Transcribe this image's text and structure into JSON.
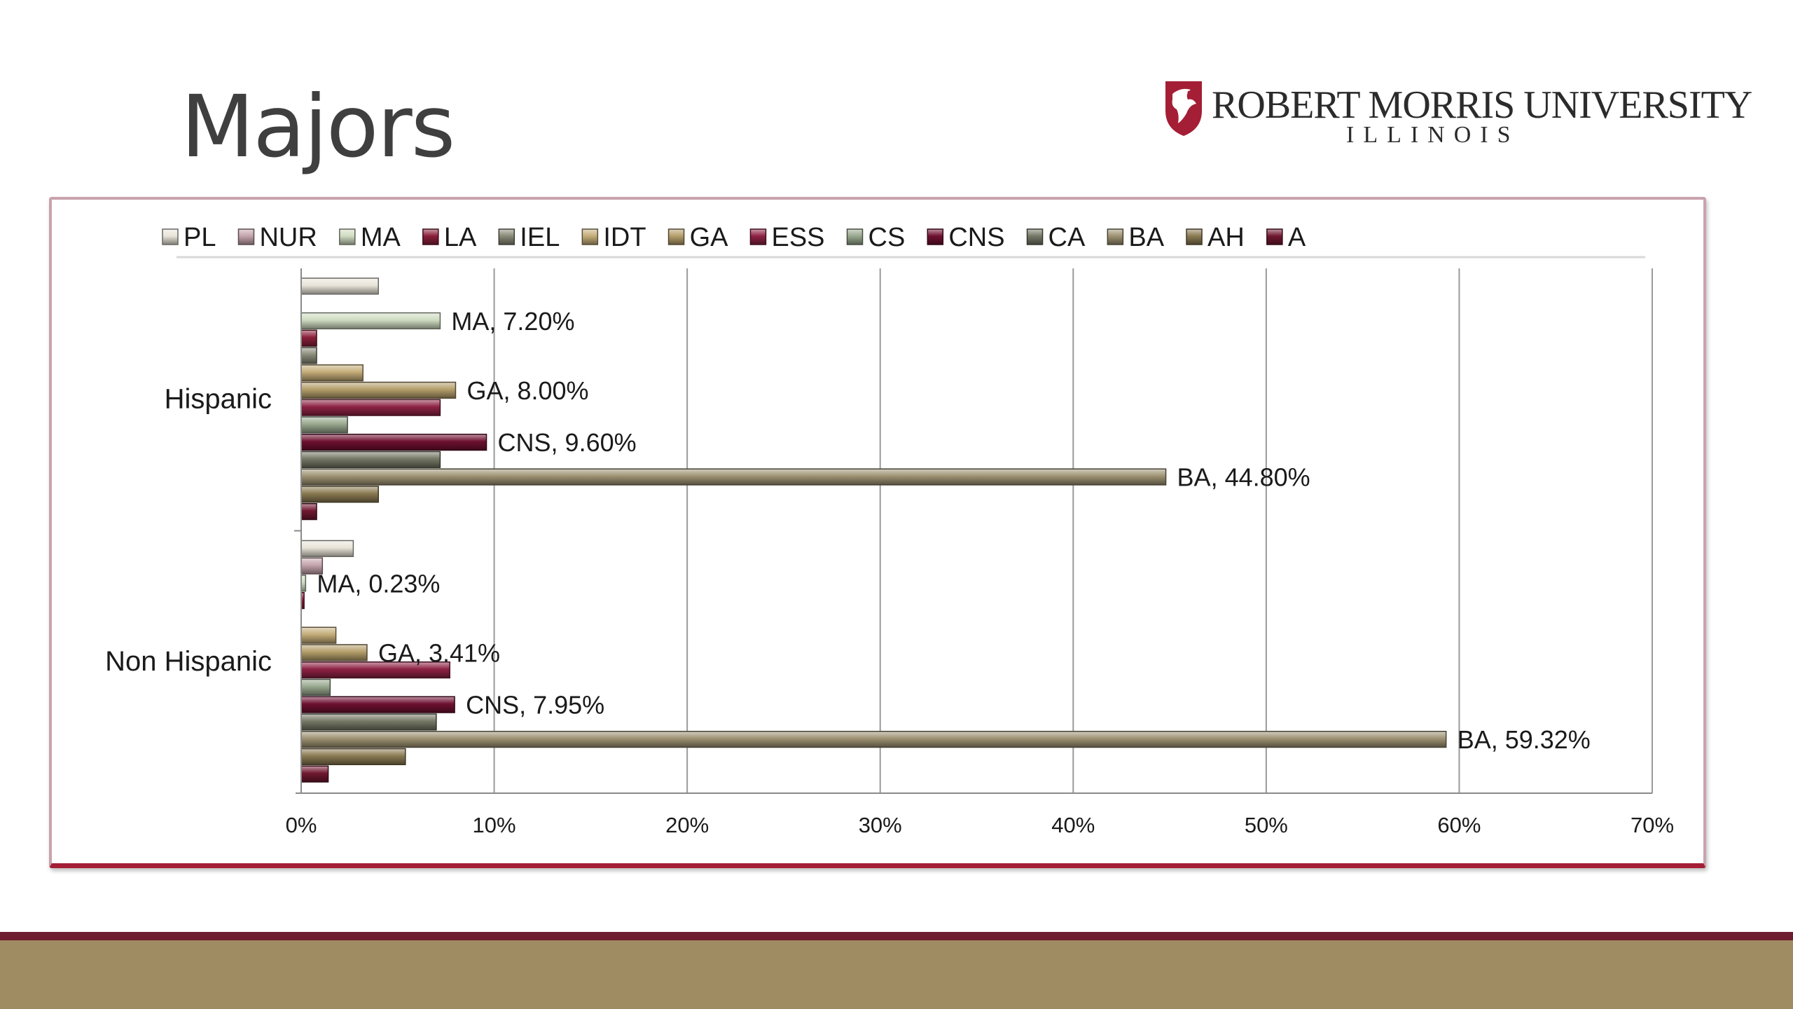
{
  "slide": {
    "title": "Majors",
    "logo": {
      "name": "ROBERT MORRIS UNIVERSITY",
      "sub": "ILLINOIS"
    },
    "colors": {
      "accent_maroon": "#6e1c30",
      "footer_gold": "#a08c63",
      "frame_border": "#c9a3ad",
      "frame_bottom": "#a41e35"
    }
  },
  "chart_data": {
    "type": "bar",
    "orientation": "horizontal",
    "categories": [
      "Hispanic",
      "Non Hispanic"
    ],
    "xlim": [
      0,
      70
    ],
    "x_ticks": [
      "0%",
      "10%",
      "20%",
      "30%",
      "40%",
      "50%",
      "60%",
      "70%"
    ],
    "grid": true,
    "legend_position": "top",
    "series": [
      {
        "name": "PL",
        "color": "#e8e4d8",
        "values": [
          4.0,
          2.7
        ]
      },
      {
        "name": "NUR",
        "color": "#c4a4ac",
        "values": [
          0.0,
          1.1
        ]
      },
      {
        "name": "MA",
        "color": "#cfdcc0",
        "values": [
          7.2,
          0.23
        ],
        "labels": [
          "MA, 7.20%",
          "MA, 0.23%"
        ]
      },
      {
        "name": "LA",
        "color": "#8a1e3a",
        "values": [
          0.8,
          0.15
        ]
      },
      {
        "name": "IEL",
        "color": "#8a8a78",
        "values": [
          0.8,
          0.0
        ]
      },
      {
        "name": "IDT",
        "color": "#c4ac78",
        "values": [
          3.2,
          1.8
        ]
      },
      {
        "name": "GA",
        "color": "#b49e6a",
        "values": [
          8.0,
          3.41
        ],
        "labels": [
          "GA, 8.00%",
          "GA, 3.41%"
        ]
      },
      {
        "name": "ESS",
        "color": "#8e2244",
        "values": [
          7.2,
          7.7
        ]
      },
      {
        "name": "CS",
        "color": "#98a88e",
        "values": [
          2.4,
          1.5
        ]
      },
      {
        "name": "CNS",
        "color": "#6e1030",
        "values": [
          9.6,
          7.95
        ],
        "labels": [
          "CNS, 9.60%",
          "CNS, 7.95%"
        ]
      },
      {
        "name": "CA",
        "color": "#767866",
        "values": [
          7.2,
          7.0
        ]
      },
      {
        "name": "BA",
        "color": "#9e9272",
        "values": [
          44.8,
          59.32
        ],
        "labels": [
          "BA, 44.80%",
          "BA, 59.32%"
        ]
      },
      {
        "name": "AH",
        "color": "#8a7a52",
        "values": [
          4.0,
          5.4
        ]
      },
      {
        "name": "A",
        "color": "#701830",
        "values": [
          0.8,
          1.4
        ]
      }
    ]
  }
}
